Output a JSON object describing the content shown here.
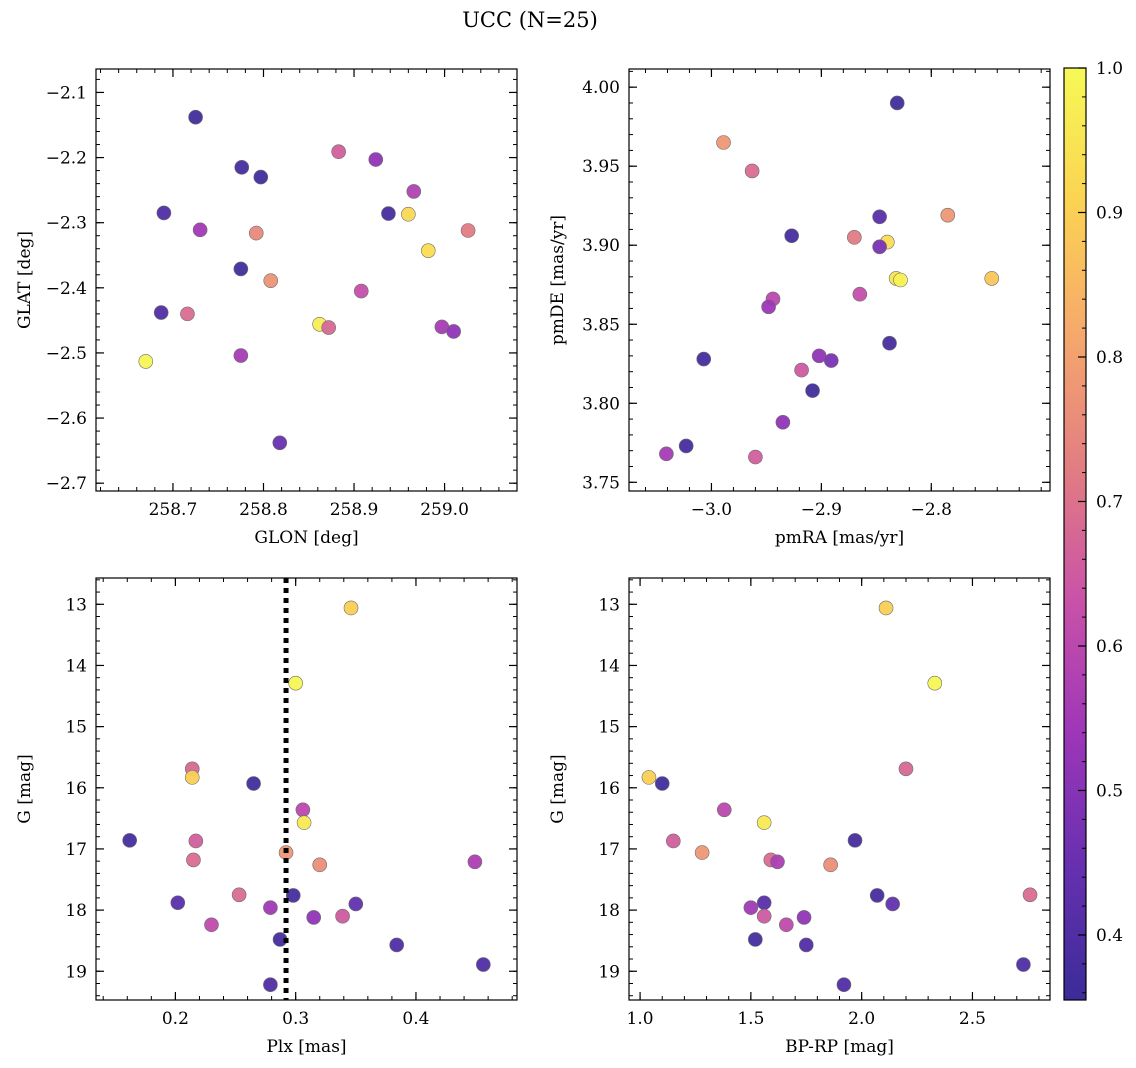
{
  "figure": {
    "title": "UCC (N=25)"
  },
  "colorbar": {
    "range": [
      0.355,
      1.0
    ],
    "ticks": [
      0.4,
      0.5,
      0.6,
      0.7,
      0.8,
      0.9,
      1.0
    ],
    "tick_labels": [
      "0.4",
      "0.5",
      "0.6",
      "0.7",
      "0.8",
      "0.9",
      "1.0"
    ],
    "colormap": "plasma-like",
    "stops": [
      "#3b2c98",
      "#6630b0",
      "#9d36b8",
      "#c952a8",
      "#e27d82",
      "#f6a86c",
      "#fbd352",
      "#f6f956"
    ]
  },
  "chart_data": [
    {
      "type": "scatter",
      "title": "",
      "xlabel": "GLON [deg]",
      "ylabel": "GLAT [deg]",
      "xlim": [
        258.615,
        259.08
      ],
      "ylim": [
        -2.712,
        -2.064
      ],
      "xticks": [
        258.7,
        258.8,
        258.9,
        259.0
      ],
      "xtick_labels": [
        "258.7",
        "258.8",
        "258.9",
        "259.0"
      ],
      "yticks": [
        -2.7,
        -2.6,
        -2.5,
        -2.4,
        -2.3,
        -2.2,
        -2.1
      ],
      "ytick_labels": [
        "−2.7",
        "−2.6",
        "−2.5",
        "−2.4",
        "−2.3",
        "−2.2",
        "−2.1"
      ],
      "x_minor_step": 0.02,
      "y_minor_step": 0.02,
      "points": [
        {
          "x": 258.725,
          "y": -2.138,
          "c": 0.37
        },
        {
          "x": 258.776,
          "y": -2.215,
          "c": 0.38
        },
        {
          "x": 258.797,
          "y": -2.23,
          "c": 0.37
        },
        {
          "x": 258.69,
          "y": -2.285,
          "c": 0.4
        },
        {
          "x": 258.73,
          "y": -2.311,
          "c": 0.55
        },
        {
          "x": 258.792,
          "y": -2.316,
          "c": 0.75
        },
        {
          "x": 258.775,
          "y": -2.371,
          "c": 0.37
        },
        {
          "x": 258.808,
          "y": -2.389,
          "c": 0.77
        },
        {
          "x": 258.883,
          "y": -2.191,
          "c": 0.66
        },
        {
          "x": 258.924,
          "y": -2.203,
          "c": 0.52
        },
        {
          "x": 258.966,
          "y": -2.252,
          "c": 0.58
        },
        {
          "x": 258.938,
          "y": -2.286,
          "c": 0.38
        },
        {
          "x": 258.96,
          "y": -2.287,
          "c": 0.92
        },
        {
          "x": 259.026,
          "y": -2.312,
          "c": 0.72
        },
        {
          "x": 258.982,
          "y": -2.343,
          "c": 0.93
        },
        {
          "x": 258.908,
          "y": -2.405,
          "c": 0.62
        },
        {
          "x": 258.687,
          "y": -2.438,
          "c": 0.4
        },
        {
          "x": 258.716,
          "y": -2.44,
          "c": 0.69
        },
        {
          "x": 258.862,
          "y": -2.456,
          "c": 0.97
        },
        {
          "x": 258.872,
          "y": -2.461,
          "c": 0.68
        },
        {
          "x": 258.997,
          "y": -2.46,
          "c": 0.56
        },
        {
          "x": 259.01,
          "y": -2.467,
          "c": 0.52
        },
        {
          "x": 258.67,
          "y": -2.513,
          "c": 0.99
        },
        {
          "x": 258.775,
          "y": -2.504,
          "c": 0.56
        },
        {
          "x": 258.818,
          "y": -2.638,
          "c": 0.45
        }
      ]
    },
    {
      "type": "scatter",
      "title": "",
      "xlabel": "pmRA [mas/yr]",
      "ylabel": "pmDE [mas/yr]",
      "xlim": [
        -3.075,
        -2.692
      ],
      "ylim": [
        3.7445,
        4.0115
      ],
      "xticks": [
        -3.0,
        -2.9,
        -2.8
      ],
      "xtick_labels": [
        "−3.0",
        "−2.9",
        "−2.8"
      ],
      "yticks": [
        3.75,
        3.8,
        3.85,
        3.9,
        3.95,
        4.0
      ],
      "ytick_labels": [
        "3.75",
        "3.80",
        "3.85",
        "3.90",
        "3.95",
        "4.00"
      ],
      "x_minor_step": 0.02,
      "y_minor_step": 0.01,
      "points": [
        {
          "x": -2.831,
          "y": 3.99,
          "c": 0.37
        },
        {
          "x": -2.989,
          "y": 3.965,
          "c": 0.78
        },
        {
          "x": -2.963,
          "y": 3.947,
          "c": 0.69
        },
        {
          "x": -2.785,
          "y": 3.919,
          "c": 0.78
        },
        {
          "x": -2.847,
          "y": 3.918,
          "c": 0.42
        },
        {
          "x": -2.927,
          "y": 3.906,
          "c": 0.38
        },
        {
          "x": -2.87,
          "y": 3.905,
          "c": 0.72
        },
        {
          "x": -2.84,
          "y": 3.902,
          "c": 0.93
        },
        {
          "x": -2.847,
          "y": 3.899,
          "c": 0.48
        },
        {
          "x": -2.832,
          "y": 3.879,
          "c": 0.95
        },
        {
          "x": -2.828,
          "y": 3.878,
          "c": 0.98
        },
        {
          "x": -2.745,
          "y": 3.879,
          "c": 0.88
        },
        {
          "x": -2.865,
          "y": 3.869,
          "c": 0.62
        },
        {
          "x": -2.944,
          "y": 3.866,
          "c": 0.6
        },
        {
          "x": -2.948,
          "y": 3.861,
          "c": 0.54
        },
        {
          "x": -2.838,
          "y": 3.838,
          "c": 0.38
        },
        {
          "x": -3.007,
          "y": 3.828,
          "c": 0.38
        },
        {
          "x": -2.902,
          "y": 3.83,
          "c": 0.52
        },
        {
          "x": -2.891,
          "y": 3.827,
          "c": 0.48
        },
        {
          "x": -2.918,
          "y": 3.821,
          "c": 0.65
        },
        {
          "x": -2.908,
          "y": 3.808,
          "c": 0.37
        },
        {
          "x": -2.935,
          "y": 3.788,
          "c": 0.52
        },
        {
          "x": -3.023,
          "y": 3.773,
          "c": 0.38
        },
        {
          "x": -3.041,
          "y": 3.768,
          "c": 0.56
        },
        {
          "x": -2.96,
          "y": 3.766,
          "c": 0.66
        }
      ]
    },
    {
      "type": "scatter",
      "title": "",
      "xlabel": "Plx [mas]",
      "ylabel": "G [mag]",
      "xlim": [
        0.134,
        0.484
      ],
      "ylim": [
        19.47,
        12.57
      ],
      "xticks": [
        0.2,
        0.3,
        0.4
      ],
      "xtick_labels": [
        "0.2",
        "0.3",
        "0.4"
      ],
      "yticks": [
        13,
        14,
        15,
        16,
        17,
        18,
        19
      ],
      "ytick_labels": [
        "13",
        "14",
        "15",
        "16",
        "17",
        "18",
        "19"
      ],
      "x_minor_step": 0.02,
      "y_minor_step": 0.2,
      "vline": {
        "x": 0.292,
        "style": "dotted"
      },
      "points": [
        {
          "x": 0.346,
          "y": 13.06,
          "c": 0.9
        },
        {
          "x": 0.3,
          "y": 14.29,
          "c": 0.99
        },
        {
          "x": 0.214,
          "y": 15.69,
          "c": 0.68
        },
        {
          "x": 0.214,
          "y": 15.83,
          "c": 0.9
        },
        {
          "x": 0.265,
          "y": 15.93,
          "c": 0.37
        },
        {
          "x": 0.306,
          "y": 16.36,
          "c": 0.6
        },
        {
          "x": 0.307,
          "y": 16.57,
          "c": 0.96
        },
        {
          "x": 0.162,
          "y": 16.86,
          "c": 0.38
        },
        {
          "x": 0.217,
          "y": 16.87,
          "c": 0.66
        },
        {
          "x": 0.292,
          "y": 17.06,
          "c": 0.78
        },
        {
          "x": 0.215,
          "y": 17.18,
          "c": 0.69
        },
        {
          "x": 0.449,
          "y": 17.21,
          "c": 0.57
        },
        {
          "x": 0.32,
          "y": 17.26,
          "c": 0.76
        },
        {
          "x": 0.253,
          "y": 17.75,
          "c": 0.69
        },
        {
          "x": 0.298,
          "y": 17.76,
          "c": 0.38
        },
        {
          "x": 0.202,
          "y": 17.88,
          "c": 0.42
        },
        {
          "x": 0.35,
          "y": 17.9,
          "c": 0.44
        },
        {
          "x": 0.279,
          "y": 17.96,
          "c": 0.55
        },
        {
          "x": 0.339,
          "y": 18.1,
          "c": 0.65
        },
        {
          "x": 0.315,
          "y": 18.12,
          "c": 0.52
        },
        {
          "x": 0.23,
          "y": 18.24,
          "c": 0.61
        },
        {
          "x": 0.287,
          "y": 18.48,
          "c": 0.38
        },
        {
          "x": 0.384,
          "y": 18.57,
          "c": 0.4
        },
        {
          "x": 0.456,
          "y": 18.89,
          "c": 0.4
        },
        {
          "x": 0.279,
          "y": 19.22,
          "c": 0.4
        }
      ]
    },
    {
      "type": "scatter",
      "title": "",
      "xlabel": "BP-RP [mag]",
      "ylabel": "G [mag]",
      "xlim": [
        0.95,
        2.85
      ],
      "ylim": [
        19.47,
        12.57
      ],
      "xticks": [
        1.0,
        1.5,
        2.0,
        2.5
      ],
      "xtick_labels": [
        "1.0",
        "1.5",
        "2.0",
        "2.5"
      ],
      "yticks": [
        13,
        14,
        15,
        16,
        17,
        18,
        19
      ],
      "ytick_labels": [
        "13",
        "14",
        "15",
        "16",
        "17",
        "18",
        "19"
      ],
      "x_minor_step": 0.1,
      "y_minor_step": 0.2,
      "points": [
        {
          "x": 2.11,
          "y": 13.06,
          "c": 0.9
        },
        {
          "x": 2.33,
          "y": 14.29,
          "c": 0.99
        },
        {
          "x": 2.2,
          "y": 15.69,
          "c": 0.68
        },
        {
          "x": 1.04,
          "y": 15.83,
          "c": 0.9
        },
        {
          "x": 1.1,
          "y": 15.93,
          "c": 0.37
        },
        {
          "x": 1.38,
          "y": 16.36,
          "c": 0.6
        },
        {
          "x": 1.56,
          "y": 16.57,
          "c": 0.96
        },
        {
          "x": 1.97,
          "y": 16.86,
          "c": 0.38
        },
        {
          "x": 1.15,
          "y": 16.87,
          "c": 0.66
        },
        {
          "x": 1.28,
          "y": 17.06,
          "c": 0.78
        },
        {
          "x": 1.59,
          "y": 17.18,
          "c": 0.69
        },
        {
          "x": 1.62,
          "y": 17.21,
          "c": 0.57
        },
        {
          "x": 1.86,
          "y": 17.26,
          "c": 0.76
        },
        {
          "x": 2.76,
          "y": 17.75,
          "c": 0.69
        },
        {
          "x": 2.07,
          "y": 17.76,
          "c": 0.38
        },
        {
          "x": 1.56,
          "y": 17.88,
          "c": 0.42
        },
        {
          "x": 2.14,
          "y": 17.9,
          "c": 0.44
        },
        {
          "x": 1.5,
          "y": 17.96,
          "c": 0.55
        },
        {
          "x": 1.56,
          "y": 18.1,
          "c": 0.65
        },
        {
          "x": 1.74,
          "y": 18.12,
          "c": 0.52
        },
        {
          "x": 1.66,
          "y": 18.24,
          "c": 0.61
        },
        {
          "x": 1.52,
          "y": 18.48,
          "c": 0.38
        },
        {
          "x": 1.75,
          "y": 18.57,
          "c": 0.4
        },
        {
          "x": 2.73,
          "y": 18.89,
          "c": 0.4
        },
        {
          "x": 1.92,
          "y": 19.22,
          "c": 0.4
        }
      ]
    }
  ]
}
